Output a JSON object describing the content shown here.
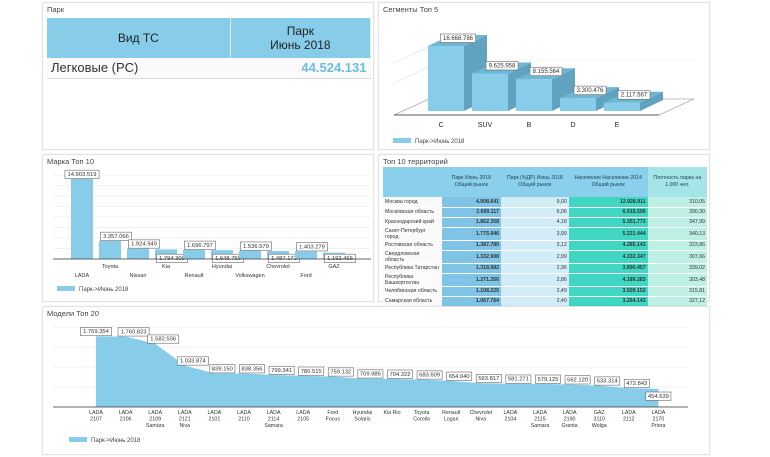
{
  "park": {
    "title": "Парк",
    "col1": "Вид ТС",
    "col2_line1": "Парк",
    "col2_line2": "Июнь 2018",
    "row_label": "Легковые (PC)",
    "row_value": "44.524.131"
  },
  "segments": {
    "title": "Сегменты Топ 5",
    "legend": "Парк->Июнь 2018",
    "colors": {
      "bar": "#87cdea"
    }
  },
  "brands": {
    "title": "Марка Топ 10",
    "legend": "Парк->Июнь 2018"
  },
  "territories": {
    "title": "Топ 10 территорий",
    "headers": [
      "",
      "Парк Июнь 2018 Общий рынок",
      "Парк (%ДР) Июнь 2018 Общий рынок",
      "Население Население 2014 Общий рынок",
      "Плотность парка на 1.000 чел."
    ],
    "rows": [
      [
        "Москва город",
        "4.008.641",
        "9,00",
        "12.928.911",
        "310,05"
      ],
      [
        "Московская область",
        "2.699.117",
        "6,06",
        "6.915.500",
        "390,30"
      ],
      [
        "Краснодарский край",
        "1.862.358",
        "4,18",
        "5.351.773",
        "347,99"
      ],
      [
        "Санкт-Петербург город",
        "1.775.946",
        "3,99",
        "5.221.444",
        "340,13"
      ],
      [
        "Ростовская область",
        "1.387.780",
        "3,12",
        "4.285.143",
        "323,86"
      ],
      [
        "Свердловская область",
        "1.332.908",
        "2,99",
        "4.332.347",
        "307,66"
      ],
      [
        "Республика Татарстан",
        "1.318.982",
        "2,96",
        "3.890.457",
        "339,02"
      ],
      [
        "Республика Башкортостан",
        "1.271.356",
        "2,86",
        "4.189.283",
        "303,48"
      ],
      [
        "Челябинская область",
        "1.108.225",
        "2,49",
        "3.509.152",
        "315,81"
      ],
      [
        "Самарская область",
        "1.067.764",
        "2,40",
        "3.264.143",
        "327,12"
      ]
    ]
  },
  "models": {
    "title": "Модели Топ 20",
    "legend": "Парк->Июнь 2018"
  },
  "chart_data": [
    {
      "type": "bar",
      "title": "Сегменты Топ 5",
      "categories": [
        "C",
        "SUV",
        "B",
        "D",
        "E"
      ],
      "values": [
        16668786,
        9625958,
        8155564,
        3300476,
        2117567
      ],
      "labels": [
        "16.668.786",
        "9.625.958",
        "8.155.564",
        "3.300.476",
        "2.117.567"
      ],
      "series_name": "Парк->Июнь 2018",
      "style": "3d"
    },
    {
      "type": "bar",
      "title": "Марка Топ 10",
      "categories": [
        "LADA",
        "Toyota",
        "Nissan",
        "Kia",
        "Renault",
        "Hyundai",
        "Volkswagen",
        "Chevrolet",
        "Ford",
        "GAZ"
      ],
      "values": [
        14903519,
        3357066,
        1924949,
        1794300,
        1696797,
        1648759,
        1536579,
        1487171,
        1403279,
        1192466
      ],
      "labels": [
        "14.903.519",
        "3.357.066",
        "1.924.949",
        "1.794.300",
        "1.696.797",
        "1.648.759",
        "1.536.579",
        "1.487.171",
        "1.403.279",
        "1.192.466"
      ],
      "series_name": "Парк->Июнь 2018"
    },
    {
      "type": "area",
      "title": "Модели Топ 20",
      "categories": [
        [
          "LADA",
          "2107"
        ],
        [
          "LADA",
          "2106"
        ],
        [
          "LADA",
          "2109",
          "Samara"
        ],
        [
          "LADA",
          "2121",
          "Niva"
        ],
        [
          "LADA",
          "2101"
        ],
        [
          "LADA",
          "2110"
        ],
        [
          "LADA",
          "2114",
          "Samara"
        ],
        [
          "LADA",
          "2105"
        ],
        [
          "Ford",
          "Focus"
        ],
        [
          "Hyundai",
          "Solaris"
        ],
        [
          "Kia Rio"
        ],
        [
          "Toyota",
          "Corolla"
        ],
        [
          "Renault",
          "Logan"
        ],
        [
          "Chevrolet",
          "Niva"
        ],
        [
          "LADA",
          "2104"
        ],
        [
          "LADA",
          "2115",
          "Samara"
        ],
        [
          "LADA",
          "2190",
          "Granta"
        ],
        [
          "GAZ",
          "3110",
          "Wolga"
        ],
        [
          "LADA",
          "2112"
        ],
        [
          "LADA",
          "2170",
          "Priora"
        ]
      ],
      "values": [
        1769354,
        1760823,
        1582506,
        1033874,
        839150,
        838356,
        799341,
        780515,
        759132,
        709985,
        704322,
        683609,
        654040,
        593817,
        581271,
        579125,
        562120,
        533314,
        472843,
        454639
      ],
      "labels": [
        "1.769.354",
        "1.760.823",
        "1.582.506",
        "1.033.874",
        "839.150",
        "838.356",
        "799.341",
        "780.515",
        "759.132",
        "709.985",
        "704.322",
        "683.609",
        "654.040",
        "593.817",
        "581.271",
        "579.125",
        "562.120",
        "533.314",
        "472.843",
        "454.639"
      ],
      "series_name": "Парк->Июнь 2018",
      "ylim": [
        0,
        2000000
      ]
    }
  ]
}
